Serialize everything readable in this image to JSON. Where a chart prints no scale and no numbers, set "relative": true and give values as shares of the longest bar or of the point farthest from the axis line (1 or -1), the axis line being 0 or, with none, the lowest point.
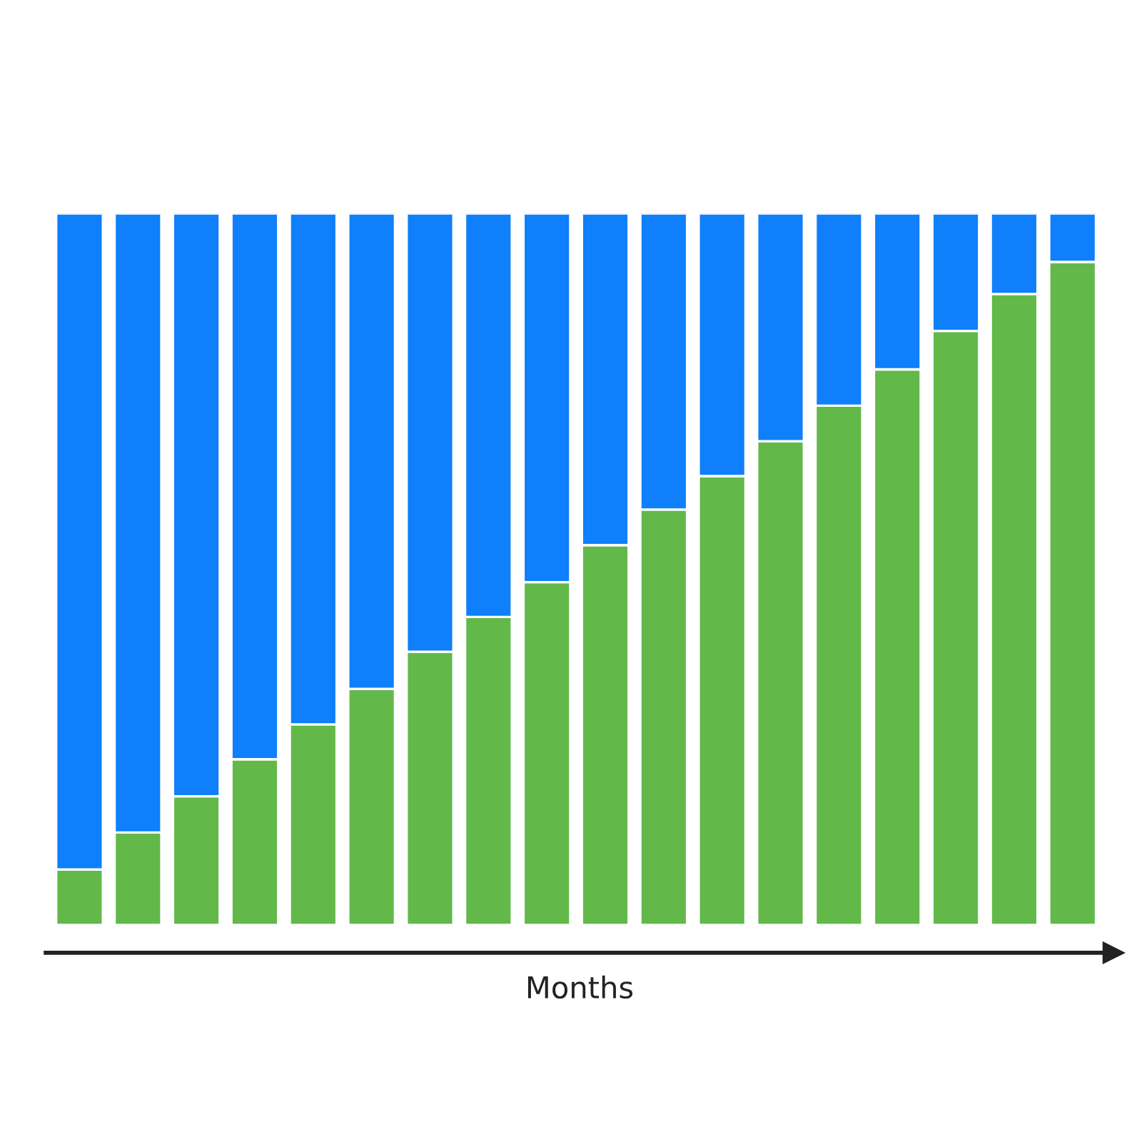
{
  "chart_data": {
    "type": "bar",
    "stacked": true,
    "relative": true,
    "xlabel": "Months",
    "categories": [
      null,
      null,
      null,
      null,
      null,
      null,
      null,
      null,
      null,
      null,
      null,
      null,
      null,
      null,
      null,
      null,
      null,
      null
    ],
    "series": [
      {
        "color": "#62b94a",
        "values": [
          0.078,
          0.13,
          0.181,
          0.233,
          0.282,
          0.332,
          0.384,
          0.433,
          0.482,
          0.534,
          0.584,
          0.631,
          0.68,
          0.73,
          0.781,
          0.835,
          0.887,
          0.932
        ]
      },
      {
        "color": "#0f7ffb",
        "values": [
          0.922,
          0.87,
          0.819,
          0.767,
          0.718,
          0.668,
          0.616,
          0.567,
          0.518,
          0.466,
          0.416,
          0.369,
          0.32,
          0.27,
          0.219,
          0.165,
          0.113,
          0.068
        ]
      }
    ],
    "grid": false,
    "legend": false
  }
}
